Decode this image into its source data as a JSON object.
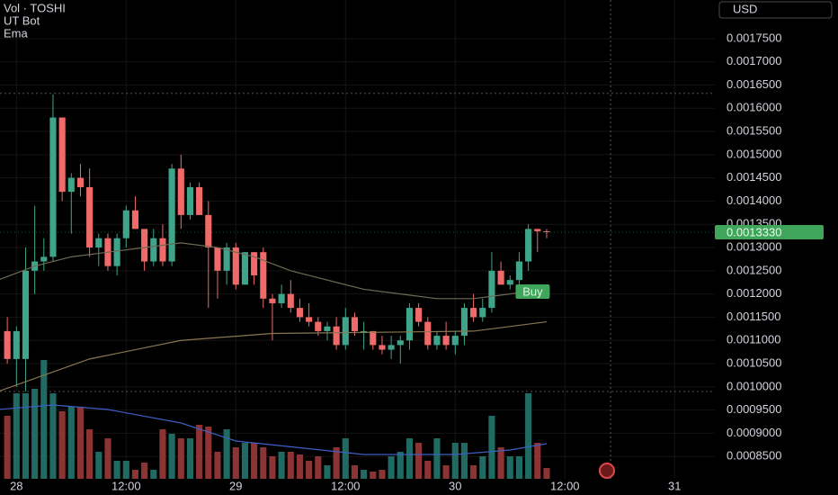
{
  "chart_data": {
    "type": "candlestick",
    "legend": [
      "Vol · TOSHI",
      "UT Bot",
      "Ema"
    ],
    "currency": "USD",
    "up_color": "#3fa58a",
    "down_color": "#f06a6a",
    "volume_up_color": "#1f6b63",
    "volume_down_color": "#8c3434",
    "x": [
      -1,
      0,
      1,
      2,
      3,
      4,
      5,
      6,
      7,
      8,
      9,
      10,
      11,
      12,
      13,
      14,
      15,
      16,
      17,
      18,
      19,
      20,
      21,
      22,
      23,
      24,
      25,
      26,
      27,
      28,
      29,
      30,
      31,
      32,
      33,
      34,
      35,
      36,
      37,
      38,
      39,
      40,
      41,
      42,
      43,
      44,
      45,
      46,
      47,
      48,
      49,
      50,
      51,
      52,
      53,
      54,
      55,
      56,
      57,
      58
    ],
    "open": [
      0.00112,
      0.00106,
      0.00106,
      0.00125,
      0.00127,
      0.00128,
      0.00158,
      0.00142,
      0.00145,
      0.00143,
      0.0013,
      0.00132,
      0.00126,
      0.00132,
      0.00138,
      0.00134,
      0.00127,
      0.00132,
      0.00127,
      0.00147,
      0.00137,
      0.00143,
      0.00137,
      0.0013,
      0.00125,
      0.0013,
      0.00122,
      0.00129,
      0.00129,
      0.00119,
      0.00118,
      0.0012,
      0.00117,
      0.00115,
      0.00114,
      0.00112,
      0.00113,
      0.00109,
      0.00115,
      0.00112,
      0.00112,
      0.00109,
      0.00108,
      0.00109,
      0.0011,
      0.00117,
      0.00114,
      0.00109,
      0.00111,
      0.00109,
      0.00111,
      0.00117,
      0.00115,
      0.00117,
      0.00125,
      0.00122,
      0.00123,
      0.00127,
      0.00134,
      0.001335
    ],
    "high": [
      0.00115,
      0.00113,
      0.0013,
      0.00139,
      0.00132,
      0.00163,
      0.00158,
      0.00146,
      0.00148,
      0.00147,
      0.00133,
      0.00133,
      0.00133,
      0.00139,
      0.00141,
      0.00134,
      0.00134,
      0.00135,
      0.00148,
      0.0015,
      0.00144,
      0.00144,
      0.0014,
      0.0013,
      0.00131,
      0.00131,
      0.00129,
      0.00129,
      0.0013,
      0.0012,
      0.00122,
      0.00123,
      0.00119,
      0.00118,
      0.00115,
      0.00114,
      0.00115,
      0.00117,
      0.00116,
      0.00114,
      0.00112,
      0.00111,
      0.00111,
      0.00111,
      0.00118,
      0.00118,
      0.00115,
      0.00112,
      0.00114,
      0.00112,
      0.00118,
      0.0012,
      0.00119,
      0.00129,
      0.00127,
      0.00124,
      0.00129,
      0.00135,
      0.00134,
      0.00134
    ],
    "low": [
      0.00105,
      0.001,
      0.00099,
      0.0012,
      0.00125,
      0.00127,
      0.0014,
      0.00133,
      0.00141,
      0.00128,
      0.00126,
      0.00125,
      0.00124,
      0.0013,
      0.00134,
      0.00125,
      0.00126,
      0.00126,
      0.00126,
      0.00134,
      0.00136,
      0.00137,
      0.00117,
      0.00119,
      0.00122,
      0.00121,
      0.00122,
      0.00122,
      0.00117,
      0.0011,
      0.00117,
      0.00116,
      0.00114,
      0.00113,
      0.00111,
      0.0011,
      0.00108,
      0.00108,
      0.00111,
      0.00108,
      0.00108,
      0.00107,
      0.00106,
      0.00105,
      0.00108,
      0.00113,
      0.00108,
      0.00108,
      0.00108,
      0.00107,
      0.00109,
      0.00114,
      0.00114,
      0.00116,
      0.00122,
      0.00121,
      0.00122,
      0.00125,
      0.00129,
      0.00132
    ],
    "close": [
      0.00106,
      0.00112,
      0.00125,
      0.00127,
      0.00128,
      0.00158,
      0.00142,
      0.00145,
      0.00143,
      0.0013,
      0.00132,
      0.00126,
      0.00132,
      0.00138,
      0.00134,
      0.00127,
      0.00132,
      0.00127,
      0.00147,
      0.00137,
      0.00143,
      0.00137,
      0.0013,
      0.00125,
      0.0013,
      0.00122,
      0.00129,
      0.00124,
      0.00119,
      0.00118,
      0.0012,
      0.00117,
      0.00115,
      0.00114,
      0.00112,
      0.00113,
      0.00109,
      0.00115,
      0.00112,
      0.00112,
      0.00109,
      0.00108,
      0.00109,
      0.0011,
      0.00117,
      0.00114,
      0.00109,
      0.00111,
      0.00109,
      0.00111,
      0.00117,
      0.00115,
      0.00117,
      0.00125,
      0.00122,
      0.00123,
      0.00127,
      0.00134,
      0.001335,
      0.001333
    ],
    "volume": [
      70,
      95,
      95,
      100,
      132,
      95,
      75,
      80,
      80,
      55,
      30,
      45,
      20,
      20,
      10,
      18,
      10,
      55,
      50,
      45,
      45,
      60,
      58,
      30,
      55,
      35,
      40,
      40,
      35,
      25,
      30,
      30,
      27,
      20,
      25,
      15,
      35,
      45,
      15,
      10,
      8,
      10,
      25,
      30,
      45,
      40,
      20,
      45,
      15,
      40,
      40,
      15,
      25,
      70,
      35,
      25,
      25,
      95,
      40,
      12
    ],
    "volume_ylim": [
      0,
      532
    ],
    "lines": [
      {
        "x": [
          -2,
          2,
          6,
          10,
          14,
          18,
          22,
          26,
          30,
          34,
          38,
          42,
          46,
          50,
          54,
          58
        ],
        "values": [
          0.00123,
          0.00126,
          0.00128,
          0.00129,
          0.0013,
          0.00131,
          0.0013,
          0.00128,
          0.00125,
          0.00123,
          0.00121,
          0.0012,
          0.00119,
          0.00119,
          0.0012,
          0.00121
        ],
        "color": "#6e6b55"
      },
      {
        "x": [
          -2,
          8,
          18,
          28,
          42,
          50,
          58
        ],
        "values": [
          0.00099,
          0.00106,
          0.0011,
          0.001115,
          0.001118,
          0.00112,
          0.00114
        ],
        "color": "#8a7650"
      }
    ],
    "volume_line": {
      "x": [
        -2,
        4,
        10,
        18,
        24,
        38,
        48,
        54,
        58
      ],
      "values": [
        77,
        82,
        77,
        62,
        42,
        27,
        27,
        32,
        39
      ],
      "color": "#3d5fc4"
    },
    "last_price": 0.001333,
    "last_price_label": "0.0013330",
    "last_price_color": "#3fa55a",
    "annotations": [
      {
        "text": "Buy",
        "x": 55,
        "y": 0.001205,
        "color": "#3fa55a"
      }
    ],
    "hlines": [
      0.001632,
      0.00099
    ],
    "vline": 65,
    "ylim": [
      0.000802,
      0.001833
    ],
    "xlim": [
      -1.8,
      76.4
    ],
    "yticks": [
      {
        "value": 0.00175,
        "label": "0.0017500"
      },
      {
        "value": 0.0017,
        "label": "0.0017000"
      },
      {
        "value": 0.00165,
        "label": "0.0016500"
      },
      {
        "value": 0.0016,
        "label": "0.0016000"
      },
      {
        "value": 0.00155,
        "label": "0.0015500"
      },
      {
        "value": 0.0015,
        "label": "0.0015000"
      },
      {
        "value": 0.00145,
        "label": "0.0014500"
      },
      {
        "value": 0.0014,
        "label": "0.0014000"
      },
      {
        "value": 0.00135,
        "label": "0.0013500"
      },
      {
        "value": 0.0013,
        "label": "0.0013000"
      },
      {
        "value": 0.00125,
        "label": "0.0012500"
      },
      {
        "value": 0.0012,
        "label": "0.0012000"
      },
      {
        "value": 0.00115,
        "label": "0.0011500"
      },
      {
        "value": 0.0011,
        "label": "0.0011000"
      },
      {
        "value": 0.00105,
        "label": "0.0010500"
      },
      {
        "value": 0.001,
        "label": "0.0010000"
      },
      {
        "value": 0.00095,
        "label": "0.0009500"
      },
      {
        "value": 0.0009,
        "label": "0.0009000"
      },
      {
        "value": 0.00085,
        "label": "0.0008500"
      }
    ],
    "xticks": [
      {
        "value": 0,
        "label": "28"
      },
      {
        "value": 12,
        "label": "12:00"
      },
      {
        "value": 24,
        "label": "29"
      },
      {
        "value": 36,
        "label": "12:00"
      },
      {
        "value": 48,
        "label": "30"
      },
      {
        "value": 60,
        "label": "12:00"
      },
      {
        "value": 72,
        "label": "31"
      }
    ],
    "grid": true
  }
}
